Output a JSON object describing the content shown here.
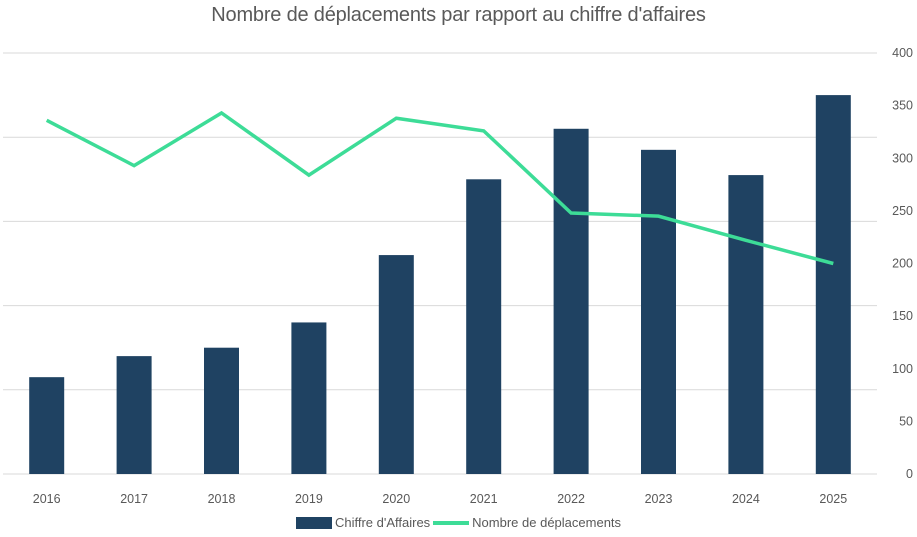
{
  "chart_data": {
    "type": "bar",
    "title": "Nombre de déplacements par rapport au chiffre d'affaires",
    "categories": [
      "2016",
      "2017",
      "2018",
      "2019",
      "2020",
      "2021",
      "2022",
      "2023",
      "2024",
      "2025"
    ],
    "series": [
      {
        "name": "Chiffre d'Affaires",
        "type": "bar",
        "axis": "primary-left-hidden",
        "values_note": "primary axis unlabeled; values as percent of hidden axis max",
        "values": [
          23,
          28,
          30,
          36,
          52,
          70,
          82,
          77,
          71,
          90
        ],
        "color": "#1F4262"
      },
      {
        "name": "Nombre de déplacements",
        "type": "line",
        "axis": "secondary-right",
        "values": [
          336,
          293,
          343,
          284,
          338,
          326,
          248,
          245,
          222,
          200
        ],
        "color": "#3DDC97"
      }
    ],
    "primary_axis": {
      "visible": false,
      "ylim": [
        0,
        100
      ],
      "gridlines": 5
    },
    "secondary_axis": {
      "visible": true,
      "ylim": [
        0,
        400
      ],
      "ticks": [
        "0",
        "50",
        "100",
        "150",
        "200",
        "250",
        "300",
        "350",
        "400"
      ],
      "position": "right"
    },
    "xlabel": "",
    "ylabel": "",
    "grid": true,
    "legend": {
      "position": "bottom",
      "entries": [
        "Chiffre d'Affaires",
        "Nombre de déplacements"
      ]
    }
  }
}
